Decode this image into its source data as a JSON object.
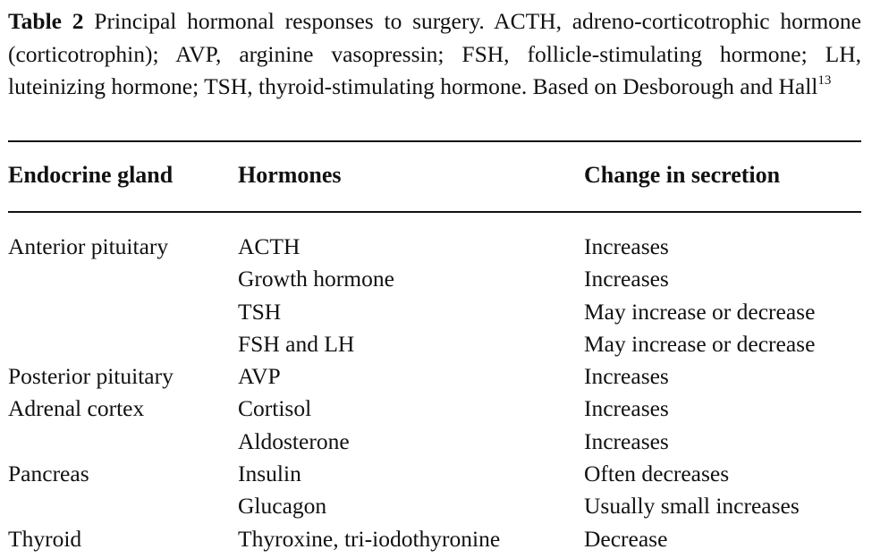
{
  "caption": {
    "label": "Table 2",
    "text": "Principal hormonal responses to surgery. ACTH, adreno-corticotrophic hormone (corticotrophin); AVP, arginine vasopressin; FSH, follicle-stimulating hormone; LH, luteinizing hormone; TSH, thyroid-stimulating hormone. Based on Desborough and Hall",
    "ref": "13"
  },
  "table": {
    "headers": [
      "Endocrine gland",
      "Hormones",
      "Change in secretion"
    ],
    "rows": [
      [
        "Anterior pituitary",
        "ACTH",
        "Increases"
      ],
      [
        "",
        "Growth hormone",
        "Increases"
      ],
      [
        "",
        "TSH",
        "May increase or decrease"
      ],
      [
        "",
        "FSH and LH",
        "May increase or decrease"
      ],
      [
        "Posterior pituitary",
        "AVP",
        "Increases"
      ],
      [
        "Adrenal cortex",
        "Cortisol",
        "Increases"
      ],
      [
        "",
        "Aldosterone",
        "Increases"
      ],
      [
        "Pancreas",
        "Insulin",
        "Often decreases"
      ],
      [
        "",
        "Glucagon",
        "Usually small increases"
      ],
      [
        "Thyroid",
        "Thyroxine, tri-iodothyronine",
        "Decrease"
      ]
    ]
  }
}
